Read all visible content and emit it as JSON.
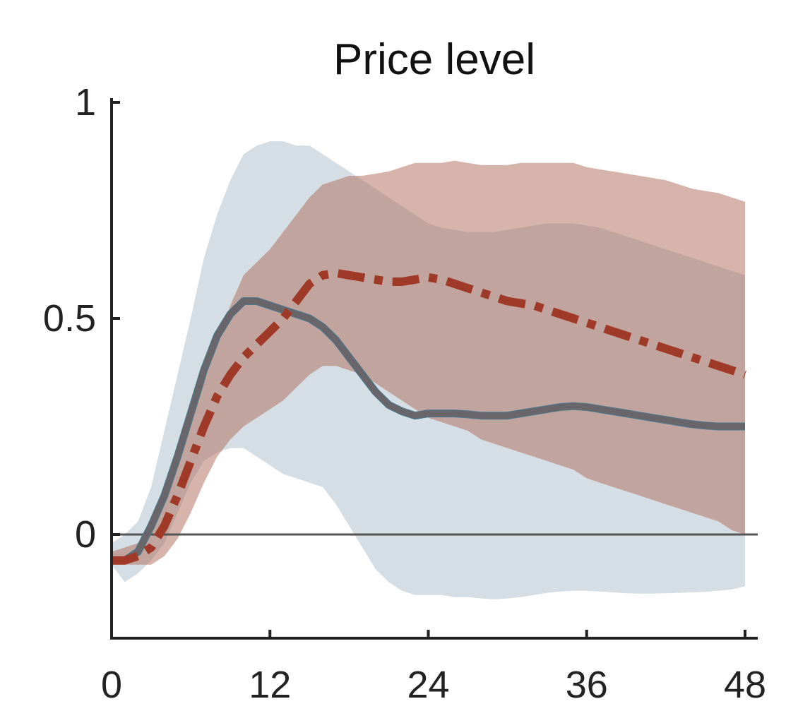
{
  "chart_data": {
    "type": "line",
    "title": "Price level",
    "xlabel": "",
    "ylabel": "",
    "xlim": [
      0,
      48
    ],
    "ylim": [
      -0.24,
      1
    ],
    "xticks": [
      0,
      12,
      24,
      36,
      48
    ],
    "xtick_labels": [
      "0",
      "12",
      "24",
      "36",
      "48"
    ],
    "yticks": [
      0,
      0.5,
      1
    ],
    "ytick_labels": [
      "0",
      "0.5",
      "1"
    ],
    "grid": false,
    "reference_line_y": 0,
    "x": [
      0,
      1,
      2,
      3,
      4,
      5,
      6,
      7,
      8,
      9,
      10,
      11,
      12,
      13,
      14,
      15,
      16,
      17,
      18,
      19,
      20,
      21,
      22,
      23,
      24,
      25,
      26,
      27,
      28,
      29,
      30,
      31,
      32,
      33,
      34,
      35,
      36,
      37,
      38,
      39,
      40,
      41,
      42,
      43,
      44,
      45,
      46,
      47,
      48
    ],
    "series": [
      {
        "style": "solid",
        "color": "#6b6468",
        "highlight_color": "#4a7a90",
        "values": [
          -0.06,
          -0.06,
          -0.04,
          0.02,
          0.09,
          0.18,
          0.28,
          0.38,
          0.46,
          0.51,
          0.54,
          0.54,
          0.53,
          0.52,
          0.51,
          0.5,
          0.48,
          0.45,
          0.41,
          0.37,
          0.33,
          0.3,
          0.285,
          0.275,
          0.28,
          0.28,
          0.28,
          0.278,
          0.275,
          0.275,
          0.275,
          0.28,
          0.285,
          0.29,
          0.295,
          0.297,
          0.295,
          0.29,
          0.285,
          0.28,
          0.275,
          0.27,
          0.265,
          0.26,
          0.255,
          0.252,
          0.25,
          0.25,
          0.25
        ]
      },
      {
        "style": "dashdot",
        "color": "#a03a28",
        "values": [
          -0.06,
          -0.06,
          -0.05,
          -0.03,
          0.02,
          0.09,
          0.17,
          0.25,
          0.32,
          0.37,
          0.41,
          0.44,
          0.47,
          0.5,
          0.54,
          0.58,
          0.6,
          0.605,
          0.6,
          0.595,
          0.59,
          0.585,
          0.585,
          0.59,
          0.595,
          0.59,
          0.58,
          0.57,
          0.56,
          0.55,
          0.54,
          0.535,
          0.53,
          0.52,
          0.51,
          0.5,
          0.49,
          0.48,
          0.47,
          0.46,
          0.45,
          0.44,
          0.43,
          0.42,
          0.41,
          0.4,
          0.39,
          0.38,
          0.37
        ]
      }
    ],
    "bands": [
      {
        "color": "#d4dee4",
        "lower": [
          -0.07,
          -0.11,
          -0.09,
          -0.06,
          -0.02,
          0.05,
          0.12,
          0.17,
          0.19,
          0.2,
          0.2,
          0.18,
          0.16,
          0.14,
          0.13,
          0.12,
          0.11,
          0.07,
          0.02,
          -0.03,
          -0.08,
          -0.11,
          -0.13,
          -0.14,
          -0.14,
          -0.14,
          -0.145,
          -0.145,
          -0.148,
          -0.15,
          -0.148,
          -0.145,
          -0.14,
          -0.135,
          -0.132,
          -0.13,
          -0.13,
          -0.132,
          -0.134,
          -0.136,
          -0.137,
          -0.137,
          -0.136,
          -0.135,
          -0.134,
          -0.133,
          -0.13,
          -0.127,
          -0.12
        ],
        "upper": [
          -0.02,
          0.0,
          0.03,
          0.11,
          0.24,
          0.37,
          0.5,
          0.64,
          0.74,
          0.82,
          0.88,
          0.9,
          0.91,
          0.91,
          0.9,
          0.9,
          0.88,
          0.86,
          0.84,
          0.82,
          0.8,
          0.78,
          0.76,
          0.74,
          0.72,
          0.71,
          0.705,
          0.7,
          0.7,
          0.7,
          0.705,
          0.71,
          0.715,
          0.72,
          0.72,
          0.72,
          0.715,
          0.71,
          0.7,
          0.69,
          0.68,
          0.67,
          0.66,
          0.65,
          0.64,
          0.63,
          0.62,
          0.61,
          0.6
        ]
      },
      {
        "color": "#b06a58",
        "opacity": 0.5,
        "lower": [
          -0.07,
          -0.07,
          -0.07,
          -0.07,
          -0.05,
          -0.01,
          0.05,
          0.12,
          0.18,
          0.22,
          0.25,
          0.27,
          0.29,
          0.31,
          0.34,
          0.37,
          0.39,
          0.39,
          0.38,
          0.37,
          0.35,
          0.33,
          0.31,
          0.29,
          0.27,
          0.26,
          0.25,
          0.24,
          0.22,
          0.21,
          0.2,
          0.19,
          0.18,
          0.17,
          0.16,
          0.15,
          0.13,
          0.12,
          0.11,
          0.1,
          0.09,
          0.08,
          0.07,
          0.06,
          0.05,
          0.04,
          0.03,
          0.01,
          0.0
        ],
        "upper": [
          -0.04,
          -0.03,
          -0.02,
          0.02,
          0.11,
          0.2,
          0.28,
          0.35,
          0.44,
          0.53,
          0.6,
          0.63,
          0.66,
          0.7,
          0.74,
          0.78,
          0.81,
          0.82,
          0.83,
          0.83,
          0.835,
          0.84,
          0.85,
          0.86,
          0.86,
          0.86,
          0.865,
          0.86,
          0.855,
          0.855,
          0.855,
          0.86,
          0.86,
          0.86,
          0.86,
          0.86,
          0.85,
          0.845,
          0.84,
          0.835,
          0.83,
          0.825,
          0.82,
          0.81,
          0.8,
          0.795,
          0.79,
          0.78,
          0.77
        ]
      }
    ]
  }
}
